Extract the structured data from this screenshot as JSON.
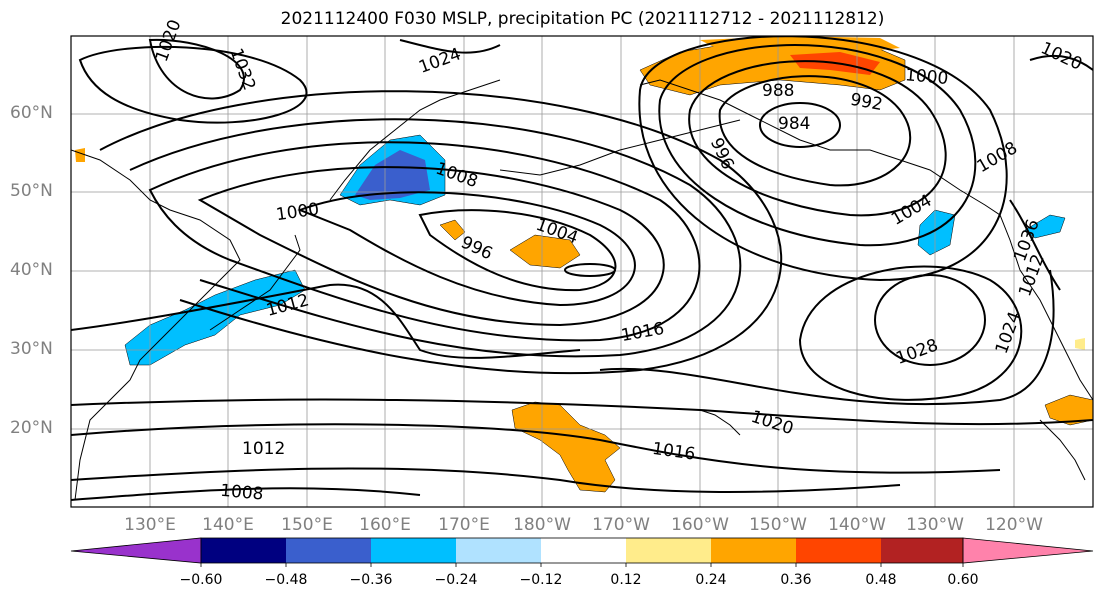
{
  "title": "2021112400 F030 MSLP, precipitation PC (2021112712 - 2021112812)",
  "lat_labels": [
    "60°N",
    "50°N",
    "40°N",
    "30°N",
    "20°N"
  ],
  "lon_labels": [
    "130°E",
    "140°E",
    "150°E",
    "160°E",
    "170°E",
    "180°W",
    "170°W",
    "160°W",
    "150°W",
    "140°W",
    "130°W",
    "120°W"
  ],
  "colorbar": {
    "ticks": [
      "−0.60",
      "−0.48",
      "−0.36",
      "−0.24",
      "−0.12",
      "0.12",
      "0.24",
      "0.36",
      "0.48",
      "0.60"
    ],
    "colors": [
      "#9932cc",
      "#000080",
      "#3a5fcd",
      "#00bfff",
      "#b0e2ff",
      "#ffffff",
      "#ffec8b",
      "#ffa500",
      "#ff4500",
      "#b22222",
      "#ff82ab"
    ]
  },
  "contour_labels": [
    "1024",
    "1032",
    "1020",
    "1000",
    "1008",
    "996",
    "1004",
    "1012",
    "1016",
    "1020",
    "1028",
    "1024",
    "1016",
    "1012",
    "1008",
    "1000",
    "988",
    "984",
    "992",
    "996",
    "1008",
    "1004",
    "1036",
    "1012",
    "1020"
  ],
  "colors": {
    "negative_light": "#b0e2ff",
    "negative_mid": "#00bfff",
    "negative_dark": "#3a5fcd",
    "positive_light": "#ffec8b",
    "positive_mid": "#ffa500",
    "positive_dark": "#ff4500"
  }
}
